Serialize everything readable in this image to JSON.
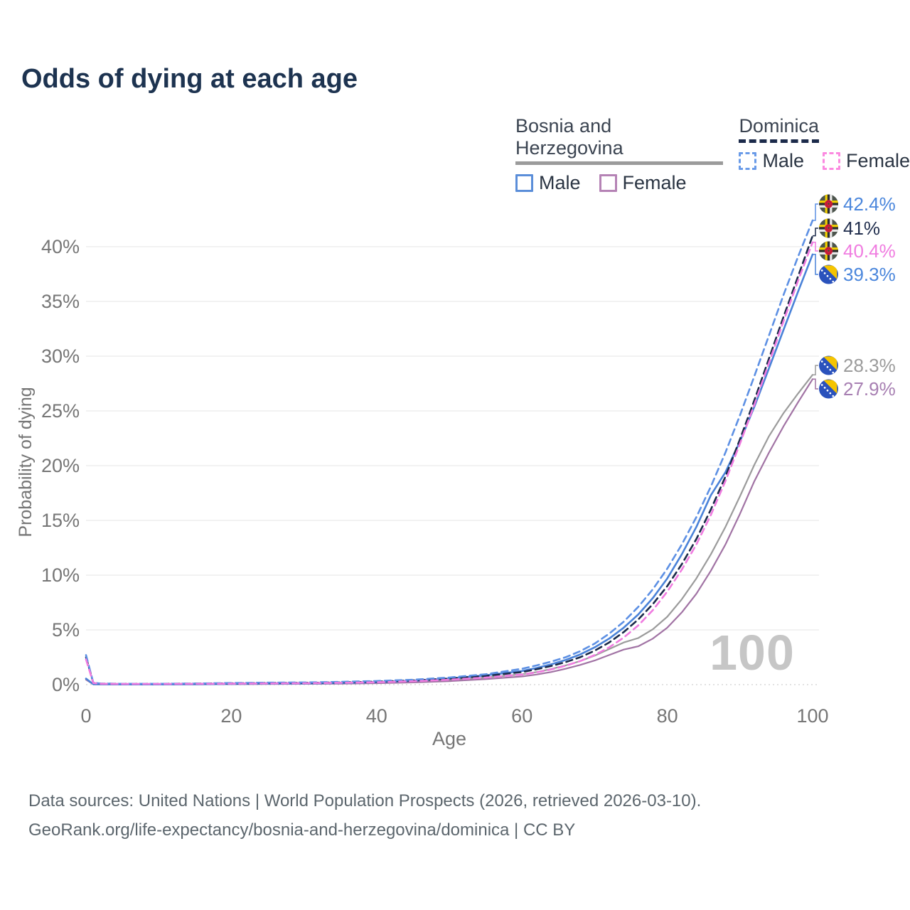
{
  "title": "Odds of dying at each age",
  "legend": {
    "groups": [
      {
        "label": "Bosnia and Herzegovina",
        "underline_color": "#9b9b9b",
        "underline_style": "solid",
        "items": [
          {
            "label": "Male",
            "swatch_color": "#5b8ed9",
            "swatch_style": "solid"
          },
          {
            "label": "Female",
            "swatch_color": "#b583b5",
            "swatch_style": "solid"
          }
        ]
      },
      {
        "label": "Dominica",
        "underline_color": "#1b2a4a",
        "underline_style": "dashed",
        "items": [
          {
            "label": "Male",
            "swatch_color": "#6a9be8",
            "swatch_style": "dashed"
          },
          {
            "label": "Female",
            "swatch_color": "#fb8ae0",
            "swatch_style": "dashed"
          }
        ]
      }
    ]
  },
  "watermark_age": "100",
  "footer": {
    "line1": "Data sources: United Nations | World Population Prospects (2026, retrieved 2026-03-10).",
    "line2": "GeoRank.org/life-expectancy/bosnia-and-herzegovina/dominica | CC BY"
  },
  "chart_data": {
    "type": "line",
    "title": "Odds of dying at each age",
    "xlabel": "Age",
    "ylabel": "Probability of dying",
    "xlim": [
      0,
      100
    ],
    "ylim": [
      0,
      44
    ],
    "grid": true,
    "x_ticks": [
      0,
      20,
      40,
      60,
      80,
      100
    ],
    "y_tick_values": [
      0,
      5,
      10,
      15,
      20,
      25,
      30,
      35,
      40
    ],
    "y_ticks": [
      "0%",
      "5%",
      "10%",
      "15%",
      "20%",
      "25%",
      "30%",
      "35%",
      "40%"
    ],
    "legend_position": "top-right",
    "x": [
      0,
      1,
      2,
      5,
      10,
      15,
      20,
      25,
      30,
      35,
      40,
      45,
      50,
      55,
      60,
      62,
      64,
      66,
      68,
      70,
      72,
      74,
      76,
      78,
      80,
      82,
      84,
      86,
      88,
      90,
      92,
      94,
      96,
      98,
      100
    ],
    "series": [
      {
        "name": "Dominica Male",
        "country": "Dominica",
        "sex": "Male",
        "style": "dashed",
        "color": "#5d90e4",
        "end_label": "42.4%",
        "end_label_color": "#4a86dc",
        "flag": "dominica",
        "values": [
          2.7,
          0.18,
          0.1,
          0.08,
          0.08,
          0.1,
          0.15,
          0.18,
          0.2,
          0.25,
          0.33,
          0.45,
          0.65,
          0.95,
          1.45,
          1.75,
          2.1,
          2.5,
          3.05,
          3.75,
          4.65,
          5.75,
          7.1,
          8.7,
          10.6,
          12.8,
          15.3,
          18.1,
          21.2,
          24.6,
          28.2,
          31.9,
          35.6,
          39.1,
          42.4
        ]
      },
      {
        "name": "Dominica",
        "country": "Dominica",
        "sex": "Both",
        "style": "dashed",
        "color": "#1b2a4a",
        "end_label": "41%",
        "end_label_color": "#222f4e",
        "flag": "dominica",
        "values": [
          2.5,
          0.16,
          0.09,
          0.07,
          0.07,
          0.09,
          0.12,
          0.14,
          0.16,
          0.2,
          0.27,
          0.38,
          0.55,
          0.8,
          1.15,
          1.4,
          1.7,
          2.05,
          2.5,
          3.1,
          3.85,
          4.8,
          5.95,
          7.35,
          9.0,
          11.0,
          13.3,
          16.0,
          19.0,
          22.4,
          26.0,
          29.8,
          33.6,
          37.3,
          41.0
        ]
      },
      {
        "name": "Dominica Female",
        "country": "Dominica",
        "sex": "Female",
        "style": "dashed",
        "color": "#f07ce0",
        "end_label": "40.4%",
        "end_label_color": "#f07ce0",
        "flag": "dominica",
        "values": [
          2.3,
          0.15,
          0.08,
          0.06,
          0.06,
          0.07,
          0.09,
          0.11,
          0.13,
          0.17,
          0.22,
          0.31,
          0.45,
          0.64,
          0.92,
          1.12,
          1.38,
          1.72,
          2.15,
          2.7,
          3.4,
          4.3,
          5.4,
          6.8,
          8.5,
          10.5,
          12.8,
          15.5,
          18.6,
          22.0,
          25.6,
          29.4,
          33.2,
          36.9,
          40.4
        ]
      },
      {
        "name": "Bosnia and Herzegovina Male",
        "country": "Bosnia and Herzegovina",
        "sex": "Male",
        "style": "solid",
        "color": "#4a82d8",
        "end_label": "39.3%",
        "end_label_color": "#4a86dc",
        "flag": "bosnia",
        "values": [
          0.55,
          0.04,
          0.03,
          0.02,
          0.02,
          0.04,
          0.07,
          0.09,
          0.11,
          0.15,
          0.22,
          0.35,
          0.55,
          0.85,
          1.25,
          1.52,
          1.85,
          2.25,
          2.75,
          3.4,
          4.2,
          5.2,
          6.4,
          7.9,
          9.7,
          11.9,
          14.4,
          17.3,
          19.4,
          22.2,
          25.4,
          28.9,
          32.4,
          35.9,
          39.3
        ]
      },
      {
        "name": "Bosnia and Herzegovina",
        "country": "Bosnia and Herzegovina",
        "sex": "Both",
        "style": "solid",
        "color": "#9b9b9b",
        "end_label": "28.3%",
        "end_label_color": "#9b9b9b",
        "flag": "bosnia",
        "values": [
          0.5,
          0.035,
          0.025,
          0.02,
          0.02,
          0.03,
          0.05,
          0.07,
          0.09,
          0.12,
          0.17,
          0.27,
          0.42,
          0.65,
          0.95,
          1.15,
          1.42,
          1.75,
          2.15,
          2.65,
          3.25,
          3.85,
          4.25,
          5.05,
          6.2,
          7.8,
          9.7,
          11.9,
          14.4,
          17.2,
          20.1,
          22.7,
          24.8,
          26.6,
          28.3
        ]
      },
      {
        "name": "Bosnia and Herzegovina Female",
        "country": "Bosnia and Herzegovina",
        "sex": "Female",
        "style": "solid",
        "color": "#a173a4",
        "end_label": "27.9%",
        "end_label_color": "#a77fb2",
        "flag": "bosnia",
        "values": [
          0.45,
          0.03,
          0.02,
          0.015,
          0.015,
          0.025,
          0.04,
          0.05,
          0.07,
          0.09,
          0.13,
          0.2,
          0.32,
          0.5,
          0.75,
          0.92,
          1.15,
          1.45,
          1.8,
          2.2,
          2.7,
          3.2,
          3.5,
          4.2,
          5.2,
          6.6,
          8.3,
          10.4,
          12.8,
          15.6,
          18.6,
          21.2,
          23.6,
          25.8,
          27.9
        ]
      }
    ]
  }
}
